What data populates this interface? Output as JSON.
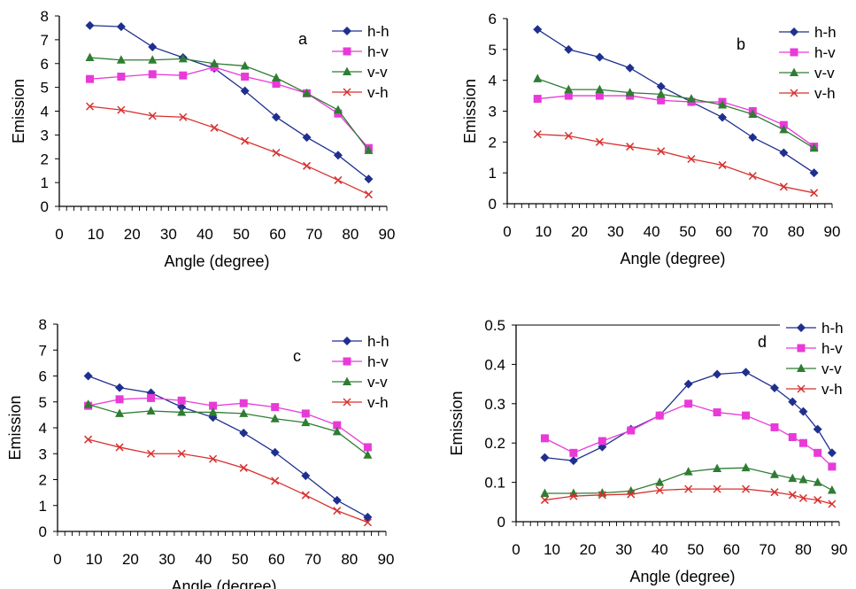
{
  "chart_data": [
    {
      "type": "line",
      "panel_label": "a",
      "xlabel": "Angle (degree)",
      "ylabel": "Emission",
      "xlim": [
        0,
        90
      ],
      "ylim": [
        0,
        8
      ],
      "xticks": [
        "0",
        "10",
        "20",
        "30",
        "40",
        "50",
        "60",
        "70",
        "80",
        "90"
      ],
      "yticks": [
        "0",
        "1",
        "2",
        "3",
        "4",
        "5",
        "6",
        "7",
        "8"
      ],
      "grid": false,
      "legend": "top-right",
      "x": [
        8.4,
        17,
        25.6,
        34,
        42.6,
        51,
        59.6,
        68,
        76.6,
        85
      ],
      "series": [
        {
          "name": "h-h",
          "color": "#1f2f8f",
          "marker": "diamond",
          "values": [
            7.6,
            7.55,
            6.7,
            6.25,
            5.8,
            4.85,
            3.75,
            2.9,
            2.15,
            1.15
          ]
        },
        {
          "name": "h-v",
          "color": "#e83ad8",
          "marker": "square",
          "values": [
            5.35,
            5.45,
            5.55,
            5.5,
            5.85,
            5.45,
            5.15,
            4.75,
            3.9,
            2.45
          ]
        },
        {
          "name": "v-v",
          "color": "#2e7d32",
          "marker": "triangle",
          "values": [
            6.25,
            6.15,
            6.15,
            6.2,
            6.0,
            5.9,
            5.4,
            4.75,
            4.05,
            2.35
          ]
        },
        {
          "name": "v-h",
          "color": "#d8302f",
          "marker": "x",
          "values": [
            4.2,
            4.05,
            3.8,
            3.75,
            3.3,
            2.75,
            2.25,
            1.7,
            1.1,
            0.5
          ]
        }
      ]
    },
    {
      "type": "line",
      "panel_label": "b",
      "xlabel": "Angle (degree)",
      "ylabel": "Emission",
      "xlim": [
        0,
        90
      ],
      "ylim": [
        0,
        6
      ],
      "xticks": [
        "0",
        "10",
        "20",
        "30",
        "40",
        "50",
        "60",
        "70",
        "80",
        "90"
      ],
      "yticks": [
        "0",
        "1",
        "2",
        "3",
        "4",
        "5",
        "6"
      ],
      "grid": false,
      "legend": "top-right",
      "x": [
        8.4,
        17,
        25.6,
        34,
        42.6,
        51,
        59.6,
        68,
        76.6,
        85
      ],
      "series": [
        {
          "name": "h-h",
          "color": "#1f2f8f",
          "marker": "diamond",
          "values": [
            5.65,
            5.0,
            4.75,
            4.4,
            3.8,
            3.3,
            2.8,
            2.15,
            1.65,
            1.0
          ]
        },
        {
          "name": "h-v",
          "color": "#e83ad8",
          "marker": "square",
          "values": [
            3.4,
            3.5,
            3.5,
            3.5,
            3.35,
            3.3,
            3.3,
            3.0,
            2.55,
            1.85
          ]
        },
        {
          "name": "v-v",
          "color": "#2e7d32",
          "marker": "triangle",
          "values": [
            4.05,
            3.7,
            3.7,
            3.6,
            3.55,
            3.4,
            3.2,
            2.9,
            2.4,
            1.8
          ]
        },
        {
          "name": "v-h",
          "color": "#d8302f",
          "marker": "x",
          "values": [
            2.25,
            2.2,
            2.0,
            1.85,
            1.7,
            1.45,
            1.25,
            0.9,
            0.55,
            0.35
          ]
        }
      ]
    },
    {
      "type": "line",
      "panel_label": "c",
      "xlabel": "Angle (degree)",
      "ylabel": "Emission",
      "xlim": [
        0,
        90
      ],
      "ylim": [
        0,
        8
      ],
      "xticks": [
        "0",
        "10",
        "20",
        "30",
        "40",
        "50",
        "60",
        "70",
        "80",
        "90"
      ],
      "yticks": [
        "0",
        "1",
        "2",
        "3",
        "4",
        "5",
        "6",
        "7",
        "8"
      ],
      "grid": false,
      "legend": "top-right",
      "x": [
        8.4,
        17,
        25.6,
        34,
        42.6,
        51,
        59.6,
        68,
        76.6,
        85
      ],
      "series": [
        {
          "name": "h-h",
          "color": "#1f2f8f",
          "marker": "diamond",
          "values": [
            6.0,
            5.55,
            5.35,
            4.8,
            4.4,
            3.8,
            3.05,
            2.15,
            1.2,
            0.55
          ]
        },
        {
          "name": "h-v",
          "color": "#e83ad8",
          "marker": "square",
          "values": [
            4.85,
            5.1,
            5.15,
            5.05,
            4.85,
            4.95,
            4.8,
            4.55,
            4.1,
            3.25
          ]
        },
        {
          "name": "v-v",
          "color": "#2e7d32",
          "marker": "triangle",
          "values": [
            4.9,
            4.55,
            4.65,
            4.6,
            4.6,
            4.55,
            4.35,
            4.2,
            3.85,
            2.95
          ]
        },
        {
          "name": "v-h",
          "color": "#d8302f",
          "marker": "x",
          "values": [
            3.55,
            3.25,
            3.0,
            3.0,
            2.8,
            2.45,
            1.95,
            1.4,
            0.8,
            0.35
          ]
        }
      ]
    },
    {
      "type": "line",
      "panel_label": "d",
      "xlabel": "Angle (degree)",
      "ylabel": "Emission",
      "xlim": [
        0,
        90
      ],
      "ylim": [
        0,
        0.5
      ],
      "xticks": [
        "0",
        "10",
        "20",
        "30",
        "40",
        "50",
        "60",
        "70",
        "80",
        "90"
      ],
      "yticks": [
        "0",
        "0.1",
        "0.2",
        "0.3",
        "0.4",
        "0.5"
      ],
      "grid": false,
      "legend": "top-right",
      "x": [
        8,
        16,
        24,
        32,
        40,
        48,
        56,
        64,
        72,
        77,
        80,
        84,
        88
      ],
      "series": [
        {
          "name": "h-h",
          "color": "#1f2f8f",
          "marker": "diamond",
          "values": [
            0.163,
            0.155,
            0.19,
            0.235,
            0.27,
            0.35,
            0.375,
            0.38,
            0.34,
            0.305,
            0.28,
            0.235,
            0.175
          ]
        },
        {
          "name": "h-v",
          "color": "#e83ad8",
          "marker": "square",
          "values": [
            0.212,
            0.175,
            0.205,
            0.232,
            0.27,
            0.3,
            0.278,
            0.27,
            0.24,
            0.215,
            0.2,
            0.175,
            0.14
          ]
        },
        {
          "name": "v-v",
          "color": "#2e7d32",
          "marker": "triangle",
          "values": [
            0.072,
            0.072,
            0.073,
            0.078,
            0.1,
            0.127,
            0.135,
            0.137,
            0.12,
            0.11,
            0.107,
            0.1,
            0.08
          ]
        },
        {
          "name": "v-h",
          "color": "#d8302f",
          "marker": "x",
          "values": [
            0.055,
            0.065,
            0.068,
            0.07,
            0.08,
            0.083,
            0.083,
            0.083,
            0.075,
            0.068,
            0.06,
            0.055,
            0.045
          ]
        }
      ]
    }
  ]
}
